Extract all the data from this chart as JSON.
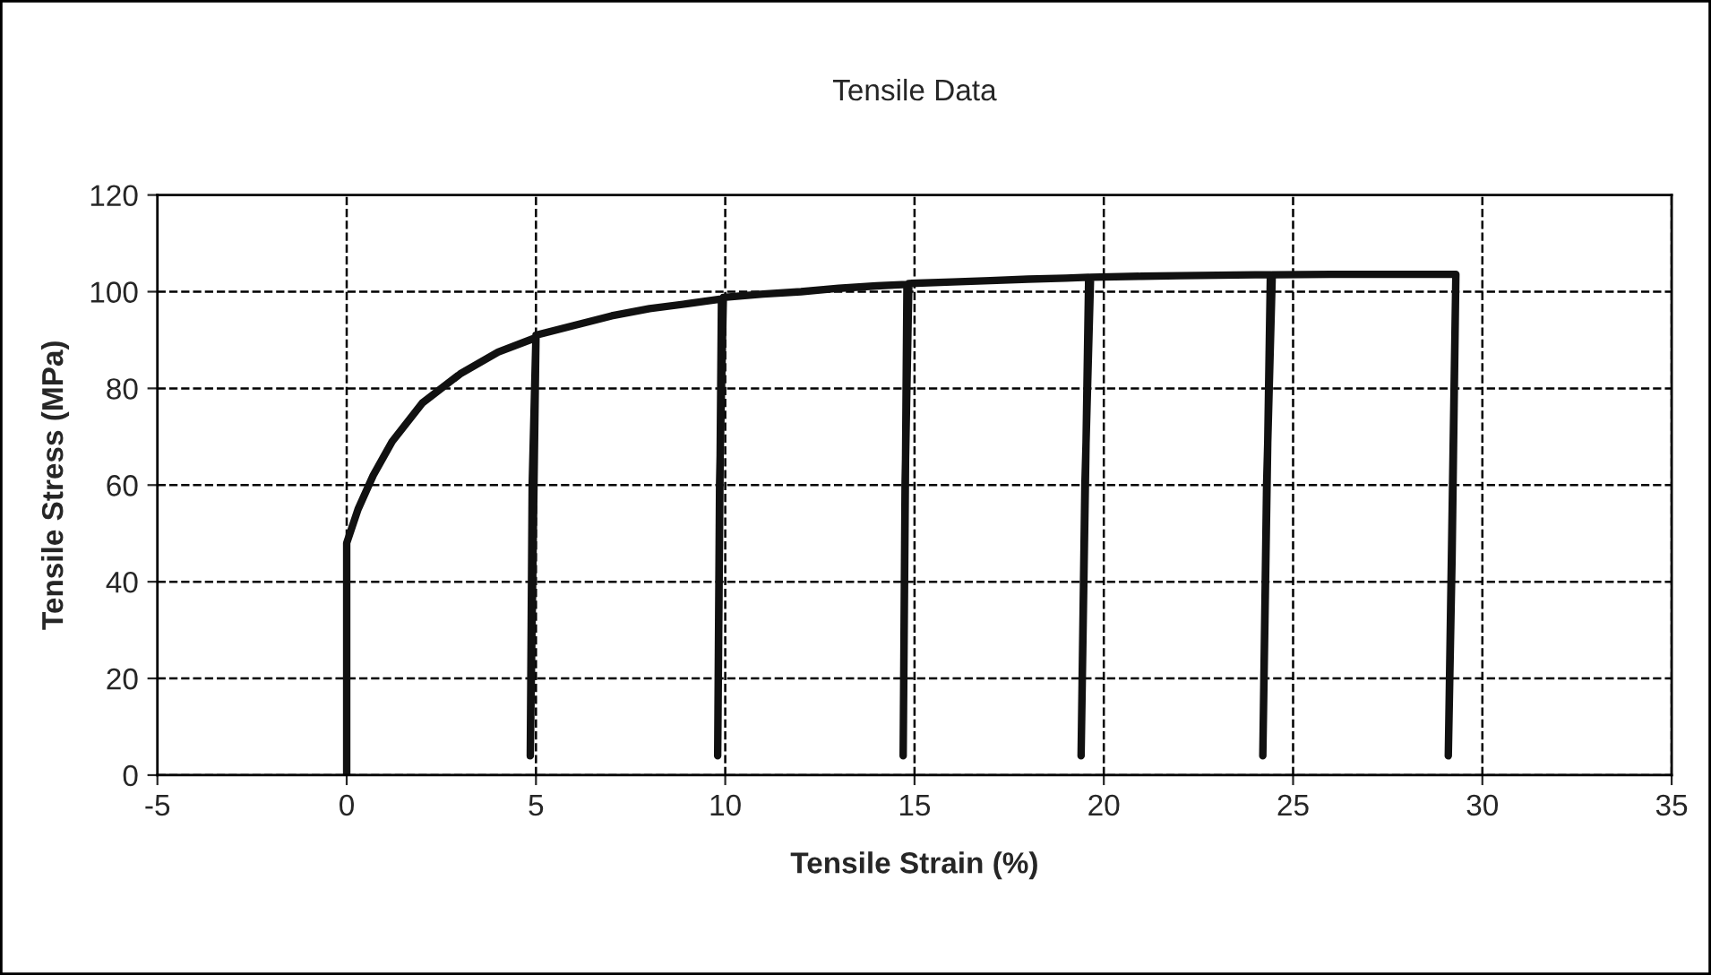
{
  "chart_data": {
    "type": "line",
    "title": "Tensile Data",
    "xlabel": "Tensile Strain (%)",
    "ylabel": "Tensile Stress (MPa)",
    "series": [
      {
        "color": "#111111",
        "x": [
          0,
          0,
          0.3,
          0.7,
          1.2,
          2,
          3,
          4,
          5,
          4.85,
          4.9,
          5,
          6,
          7,
          8,
          9,
          9.9,
          9.8,
          9.85,
          9.95,
          11,
          12,
          13,
          14,
          14.8,
          14.7,
          14.75,
          14.85,
          16,
          17,
          18,
          19,
          19.6,
          19.4,
          19.5,
          19.65,
          21,
          22,
          23,
          24,
          24.4,
          24.2,
          24.3,
          24.45,
          26,
          27,
          28,
          29.3,
          29.1,
          29.2,
          29.3
        ],
        "values": [
          0,
          48,
          55,
          62,
          69,
          77,
          83,
          87.5,
          90.5,
          4,
          60,
          91,
          93,
          95,
          96.5,
          97.5,
          98.5,
          4,
          60,
          98.8,
          99.5,
          100,
          100.7,
          101.2,
          101.5,
          4,
          60,
          101.7,
          102,
          102.3,
          102.6,
          102.8,
          103,
          4,
          60,
          103,
          103.2,
          103.3,
          103.4,
          103.5,
          103.5,
          4,
          60,
          103.5,
          103.6,
          103.6,
          103.6,
          103.6,
          4,
          45,
          103.6
        ]
      }
    ],
    "xlim": [
      -5,
      35
    ],
    "xticks": [
      -5,
      0,
      5,
      10,
      15,
      20,
      25,
      30,
      35
    ],
    "ylim": [
      0,
      120
    ],
    "yticks": [
      0,
      20,
      40,
      60,
      80,
      100,
      120
    ],
    "grid": true,
    "line_style": "solid",
    "marker": "none"
  }
}
